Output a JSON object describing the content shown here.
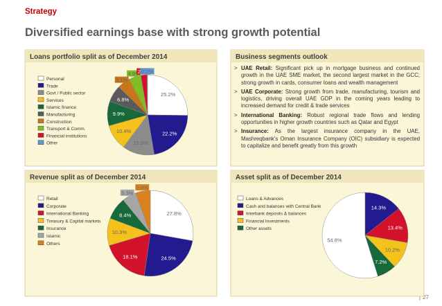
{
  "header": {
    "section": "Strategy",
    "title": "Diversified earnings base with strong  growth potential"
  },
  "chart_data": [
    {
      "type": "pie",
      "title": "Loans portfolio split as of December 2014",
      "categories": [
        "Personal",
        "Trade",
        "Govt / Public sector",
        "Services",
        "Islamic finance",
        "Manufacturing",
        "Construction",
        "Transport & Comm.",
        "Financial institutions",
        "Other"
      ],
      "values": [
        25.2,
        22.2,
        12.9,
        10.4,
        9.9,
        6.8,
        5.1,
        4.9,
        2.5,
        0.2
      ],
      "value_labels": [
        "25.2%",
        "22.2%",
        "12.9%",
        "10.4%",
        "9.9%",
        "6.8%",
        "5.1%",
        "4.9%",
        "2.5%",
        "0.2%"
      ],
      "colors": [
        "#ffffff",
        "#221a8e",
        "#8c8c8c",
        "#f4c21a",
        "#17693a",
        "#5a5a5a",
        "#c9761b",
        "#7fbd22",
        "#d2112b",
        "#5b9bd5"
      ]
    },
    {
      "type": "pie",
      "title": "Revenue split as of December 2014",
      "categories": [
        "Retail",
        "Corporate",
        "International Banking",
        "Treasury & Capital markets",
        "Insurance",
        "Islamic",
        "Others"
      ],
      "values": [
        27.8,
        24.5,
        18.1,
        10.3,
        8.4,
        5.3,
        5.6
      ],
      "value_labels": [
        "27.8%",
        "24.5%",
        "18.1%",
        "10.3%",
        "8.4%",
        "5.3%",
        "5.6%"
      ],
      "colors": [
        "#ffffff",
        "#221a8e",
        "#d2112b",
        "#f4c21a",
        "#17693a",
        "#a6a6a6",
        "#d9831f"
      ]
    },
    {
      "type": "pie",
      "title": "Asset split as of December 2014",
      "categories": [
        "Loans & Advances",
        "Cash and balances with Central Bank",
        "Interbank deposits & balances",
        "Financial Investments",
        "Other assets"
      ],
      "values": [
        54.8,
        14.3,
        13.4,
        10.2,
        7.2
      ],
      "value_labels": [
        "54.8%",
        "14.3%",
        "13.4%",
        "10.2%",
        "7.2%"
      ],
      "colors": [
        "#ffffff",
        "#221a8e",
        "#d2112b",
        "#f4c21a",
        "#17693a"
      ]
    }
  ],
  "outlook": {
    "title": "Business segments outlook",
    "items": [
      {
        "label": "UAE Retail:",
        "text": "Significant pick up in mortgage business and continued growth in the UAE SME market, the second largest market in the GCC; strong growth in cards, consumer loans and wealth management"
      },
      {
        "label": "UAE Corporate:",
        "text": "Strong growth from trade, manufacturing, tourism and  logistics, driving overall UAE GDP in the coming years leading to increased demand for credit & trade services"
      },
      {
        "label": "International Banking:",
        "text": "Robust regional trade flows and lending opportunities in higher growth countries such as Qatar and Egypt"
      },
      {
        "label": "Insurance:",
        "text": "As the largest insurance company in the UAE, Mashreqbank's Oman Insurance Company (OIC) subsidiary is expected to capitalize and benefit greatly from this growth"
      }
    ]
  },
  "footer": {
    "page": "27"
  }
}
